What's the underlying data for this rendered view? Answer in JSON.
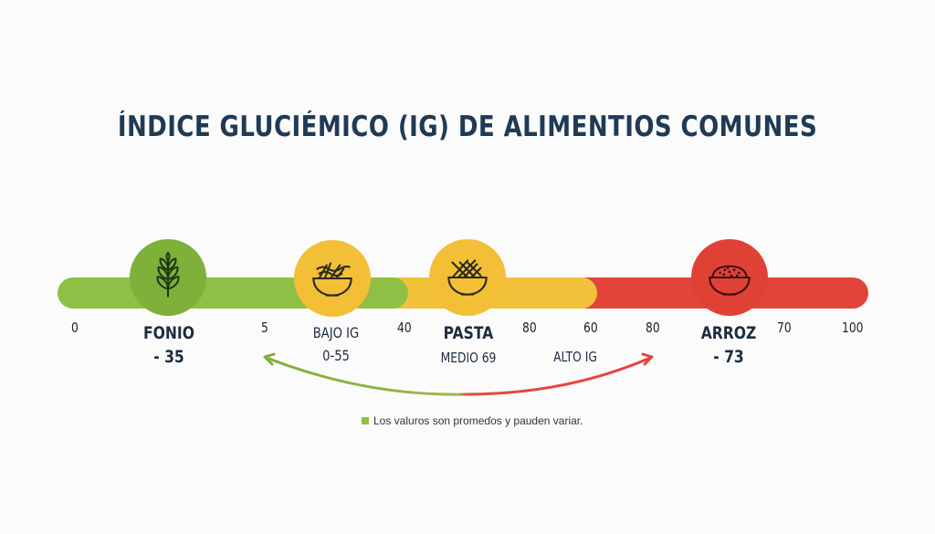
{
  "title": "ÍNDICE GLUCIÉMICO (IG) DE ALIMENTIOS COMUNES",
  "scale_ticks": [
    "0",
    "5",
    "40",
    "80",
    "60",
    "80",
    "70",
    "100"
  ],
  "foods": [
    {
      "name": "FONIO",
      "value": "- 35",
      "icon": "wheat-icon",
      "color": "#7fb03a"
    },
    {
      "name": "PASTA",
      "value": "MEDIO 69",
      "icon": "pasta-bowl-icon",
      "color": "#f2bf36"
    },
    {
      "name": "ARROZ",
      "value": "- 73",
      "icon": "rice-bowl-icon",
      "color": "#df4235"
    }
  ],
  "range_labels": {
    "low": "BAJO IG",
    "low_range": "0-55",
    "high": "ALTO IG"
  },
  "extra_icon": "noodle-bowl-icon",
  "legend": "Los valuros son promeɗos y pauden variar.",
  "colors": {
    "low": "#8dc044",
    "medium": "#f2c23b",
    "high": "#e2443a",
    "title": "#1f3a55"
  }
}
